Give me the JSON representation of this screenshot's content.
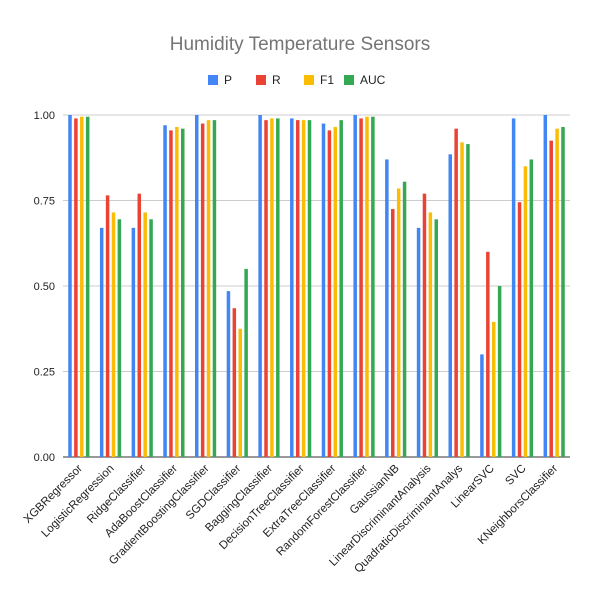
{
  "chart_data": {
    "type": "bar",
    "title": "Humidity Temperature Sensors",
    "xlabel": "",
    "ylabel": "",
    "ylim": [
      0,
      1
    ],
    "yticks": [
      "0.00",
      "0.25",
      "0.50",
      "0.75",
      "1.00"
    ],
    "grid": true,
    "legend": "top",
    "categories": [
      "XGBRegressor",
      "LogisticRegression",
      "RidgeClassifier",
      "AdaBoostClassifier",
      "GradientBoostingClassifier",
      "SGDClassifier",
      "BaggingClassifier",
      "DecisionTreeClassifier",
      "ExtraTreeClassifier",
      "RandomForestClassifier",
      "GaussianNB",
      "LinearDiscriminantAnalysis",
      "QuadraticDiscriminantAnalys",
      "LinearSVC",
      "SVC",
      "KNeighborsClassifier"
    ],
    "series": [
      {
        "name": "P",
        "color": "#4285f4",
        "values": [
          1.0,
          0.67,
          0.67,
          0.97,
          1.0,
          0.485,
          1.0,
          0.99,
          0.975,
          1.0,
          0.87,
          0.67,
          0.885,
          0.3,
          0.99,
          1.0
        ]
      },
      {
        "name": "R",
        "color": "#ea4335",
        "values": [
          0.99,
          0.765,
          0.77,
          0.955,
          0.975,
          0.435,
          0.985,
          0.985,
          0.955,
          0.99,
          0.725,
          0.77,
          0.96,
          0.6,
          0.745,
          0.925
        ]
      },
      {
        "name": "F1",
        "color": "#fbbc04",
        "values": [
          0.995,
          0.715,
          0.715,
          0.965,
          0.985,
          0.375,
          0.99,
          0.985,
          0.965,
          0.995,
          0.785,
          0.715,
          0.92,
          0.395,
          0.85,
          0.96
        ]
      },
      {
        "name": "AUC",
        "color": "#34a853",
        "values": [
          0.995,
          0.695,
          0.695,
          0.96,
          0.985,
          0.55,
          0.99,
          0.985,
          0.985,
          0.995,
          0.805,
          0.695,
          0.915,
          0.5,
          0.87,
          0.965
        ]
      }
    ]
  }
}
